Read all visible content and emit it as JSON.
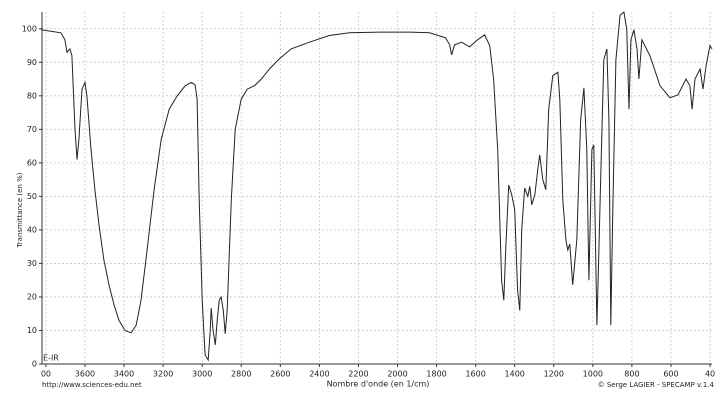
{
  "chart_data": {
    "type": "line",
    "x_label": "Nombre d'onde (en 1/cm)",
    "y_label": "Transmittance (en %)",
    "annotation": "E-IR",
    "source": "http://www.sciences-edu.net",
    "credit": "© Serge LAGIER - SPECAMP v.1.4",
    "color": "#222222",
    "grid": true,
    "xlim": [
      3820,
      390
    ],
    "ylim": [
      0,
      105
    ],
    "xticks": [
      {
        "value": 3800,
        "label": "00"
      },
      3600,
      3400,
      3200,
      3000,
      2800,
      2600,
      2400,
      2200,
      2000,
      1800,
      1600,
      1400,
      1200,
      1000,
      800,
      600,
      {
        "value": 400,
        "label": "40"
      }
    ],
    "yticks": [
      0,
      10,
      20,
      30,
      40,
      50,
      60,
      70,
      80,
      90,
      100
    ],
    "x": [
      3825,
      3723,
      3703,
      3692,
      3677,
      3667,
      3651,
      3641,
      3631,
      3615,
      3600,
      3590,
      3569,
      3549,
      3528,
      3503,
      3477,
      3451,
      3426,
      3395,
      3364,
      3338,
      3313,
      3282,
      3246,
      3210,
      3169,
      3128,
      3087,
      3056,
      3036,
      3026,
      3015,
      3000,
      2985,
      2969,
      2959,
      2954,
      2944,
      2933,
      2923,
      2913,
      2903,
      2892,
      2882,
      2872,
      2851,
      2831,
      2800,
      2769,
      2733,
      2697,
      2656,
      2605,
      2544,
      2451,
      2349,
      2246,
      2092,
      1938,
      1836,
      1754,
      1733,
      1723,
      1708,
      1672,
      1631,
      1590,
      1554,
      1528,
      1508,
      1487,
      1467,
      1456,
      1446,
      1431,
      1415,
      1400,
      1385,
      1374,
      1364,
      1349,
      1333,
      1323,
      1313,
      1297,
      1282,
      1272,
      1256,
      1241,
      1226,
      1205,
      1179,
      1169,
      1154,
      1138,
      1128,
      1118,
      1103,
      1082,
      1062,
      1046,
      1031,
      1020,
      1005,
      995,
      979,
      969,
      959,
      944,
      928,
      918,
      908,
      897,
      882,
      861,
      841,
      826,
      815,
      805,
      790,
      774,
      764,
      749,
      708,
      656,
      605,
      564,
      523,
      503,
      492,
      477,
      451,
      436,
      420,
      400,
      390
    ],
    "values": [
      99.7,
      98.8,
      96.7,
      93,
      94,
      92,
      70,
      61,
      67,
      82,
      84,
      80,
      64,
      52,
      41.5,
      31,
      23.6,
      17.6,
      13,
      10,
      9.3,
      11.6,
      19,
      34,
      52,
      67,
      76,
      80,
      83,
      84,
      83.3,
      79,
      49,
      19,
      2.7,
      1.2,
      10,
      16.7,
      10,
      5.7,
      13,
      19,
      20,
      16,
      9,
      16,
      49,
      70,
      79,
      82,
      83,
      85,
      88,
      91,
      94,
      96,
      98,
      98.8,
      99,
      99,
      98.8,
      97.3,
      95.2,
      92.2,
      95.2,
      96,
      94.6,
      96.7,
      98.2,
      95,
      85,
      64,
      25,
      19,
      34,
      53.4,
      50.4,
      46,
      22,
      16,
      40,
      52.5,
      50,
      53,
      47.5,
      50.4,
      58,
      62.4,
      55,
      52,
      76,
      86,
      87,
      79,
      49,
      37,
      34,
      35.8,
      23.6,
      37,
      73,
      82.4,
      64,
      25,
      64,
      65.4,
      11.6,
      34,
      58,
      90.7,
      94,
      73,
      11.6,
      49,
      90.7,
      104,
      105,
      99.7,
      76,
      96.7,
      99.7,
      94,
      85,
      96.7,
      92,
      83,
      79.4,
      80.3,
      85,
      83,
      76,
      85,
      88,
      82,
      89,
      95,
      94
    ]
  }
}
